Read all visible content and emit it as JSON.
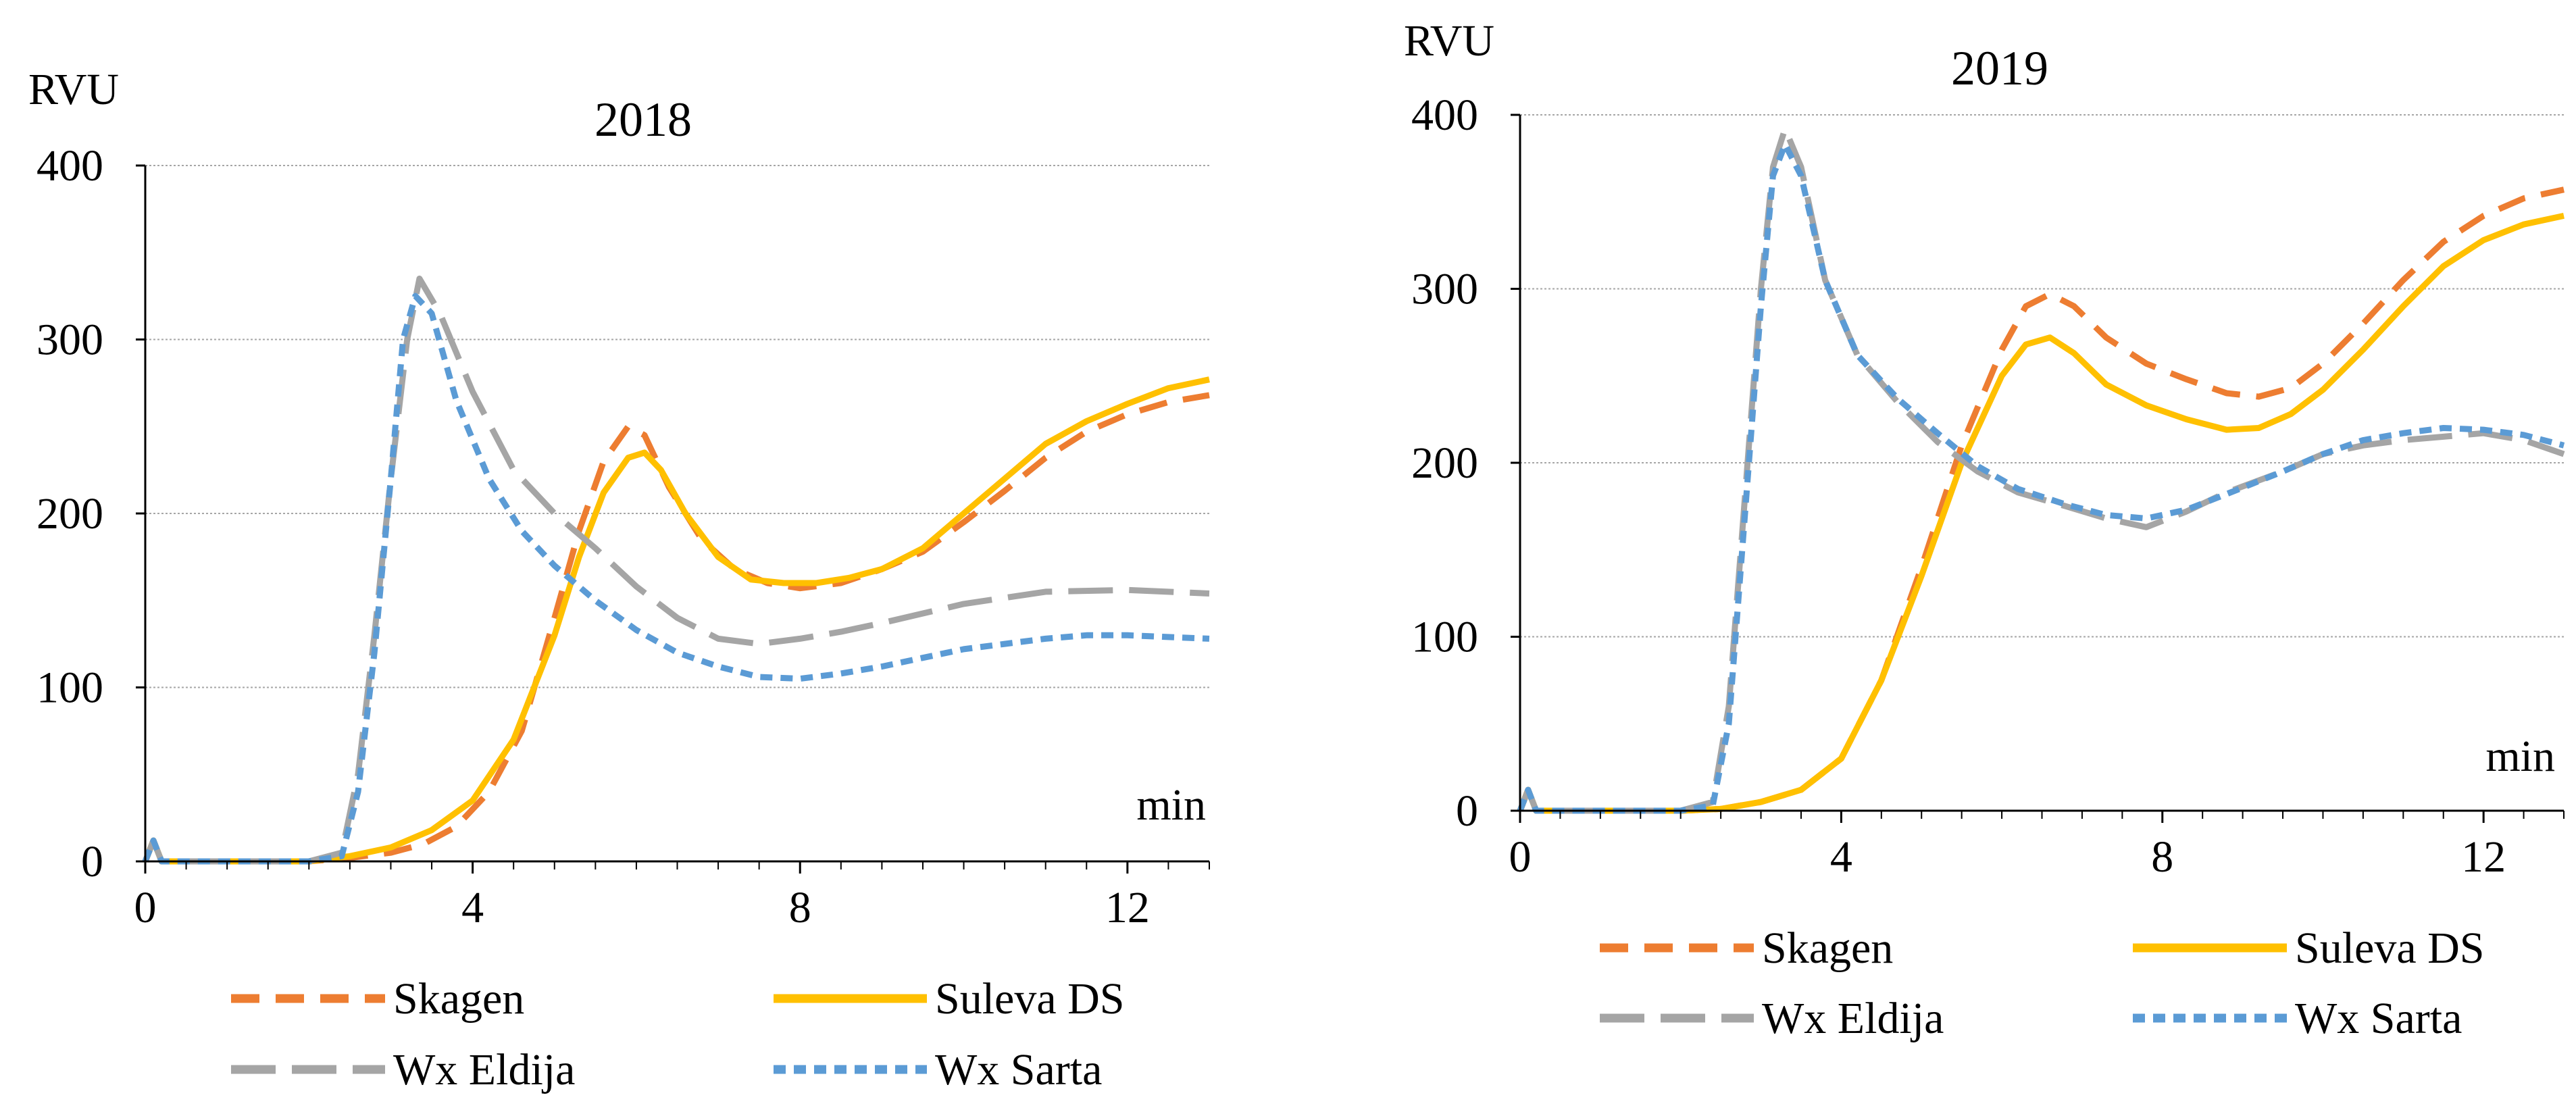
{
  "legend_order": [
    "Skagen",
    "Suleva DS",
    "Wx Eldija",
    "Wx Sarta"
  ],
  "chart_data": [
    {
      "type": "line",
      "title": "2018",
      "ylabel": "RVU",
      "xlabel": "min",
      "xlim": [
        0,
        13
      ],
      "ylim": [
        0,
        400
      ],
      "xticks": [
        0,
        4,
        8,
        12
      ],
      "yticks": [
        0,
        100,
        200,
        300,
        400
      ],
      "xtick_labels": [
        "0",
        "4",
        "8",
        "12"
      ],
      "ytick_labels": [
        "0",
        "100",
        "200",
        "300",
        "400"
      ],
      "grid": true,
      "legend_position": "bottom",
      "series": [
        {
          "name": "Skagen",
          "color": "#ed7d31",
          "style": "dash",
          "x": [
            0,
            0.1,
            0.2,
            1,
            2,
            2.5,
            3,
            3.4,
            3.8,
            4.2,
            4.6,
            5,
            5.3,
            5.6,
            5.9,
            6.1,
            6.4,
            6.8,
            7.2,
            7.6,
            8,
            8.5,
            9,
            9.5,
            10,
            10.5,
            11,
            11.5,
            12,
            12.5,
            13
          ],
          "y": [
            0,
            12,
            0,
            0,
            0,
            2,
            5,
            10,
            20,
            40,
            75,
            140,
            190,
            230,
            250,
            245,
            215,
            185,
            168,
            160,
            157,
            160,
            168,
            178,
            195,
            213,
            232,
            247,
            257,
            264,
            268
          ]
        },
        {
          "name": "Suleva DS",
          "color": "#ffc000",
          "style": "solid",
          "x": [
            0,
            0.1,
            0.2,
            1,
            2,
            2.5,
            3,
            3.5,
            4,
            4.5,
            5,
            5.3,
            5.6,
            5.9,
            6.1,
            6.3,
            6.6,
            7,
            7.4,
            7.8,
            8.2,
            8.6,
            9,
            9.5,
            10,
            10.5,
            11,
            11.5,
            12,
            12.5,
            13
          ],
          "y": [
            0,
            12,
            0,
            0,
            0,
            3,
            8,
            18,
            35,
            70,
            130,
            175,
            212,
            232,
            235,
            225,
            200,
            175,
            162,
            160,
            160,
            163,
            168,
            180,
            200,
            220,
            240,
            253,
            263,
            272,
            277
          ]
        },
        {
          "name": "Wx Eldija",
          "color": "#a5a5a5",
          "style": "longdash",
          "x": [
            0,
            0.1,
            0.2,
            1,
            2,
            2.4,
            2.6,
            2.8,
            3,
            3.2,
            3.35,
            3.6,
            4,
            4.5,
            5,
            5.5,
            6,
            6.5,
            7,
            7.5,
            8,
            8.5,
            9,
            10,
            11,
            12,
            13
          ],
          "y": [
            0,
            12,
            0,
            0,
            0,
            5,
            50,
            130,
            220,
            300,
            335,
            315,
            270,
            225,
            200,
            180,
            158,
            140,
            128,
            125,
            128,
            132,
            137,
            148,
            155,
            156,
            154
          ]
        },
        {
          "name": "Wx Sarta",
          "color": "#5b9bd5",
          "style": "shortdash",
          "x": [
            0,
            0.1,
            0.2,
            1,
            2,
            2.4,
            2.6,
            2.8,
            3,
            3.15,
            3.3,
            3.5,
            3.8,
            4.2,
            4.6,
            5,
            5.5,
            6,
            6.5,
            7,
            7.5,
            8,
            8.5,
            9,
            9.5,
            10,
            10.5,
            11,
            11.5,
            12,
            13
          ],
          "y": [
            0,
            12,
            0,
            0,
            0,
            3,
            40,
            120,
            220,
            300,
            325,
            315,
            265,
            220,
            190,
            170,
            150,
            133,
            120,
            112,
            106,
            105,
            108,
            112,
            117,
            122,
            125,
            128,
            130,
            130,
            128
          ]
        }
      ]
    },
    {
      "type": "line",
      "title": "2019",
      "ylabel": "RVU",
      "xlabel": "min",
      "xlim": [
        0,
        13
      ],
      "ylim": [
        0,
        400
      ],
      "xticks": [
        0,
        4,
        8,
        12
      ],
      "yticks": [
        0,
        100,
        200,
        300,
        400
      ],
      "xtick_labels": [
        "0",
        "4",
        "8",
        "12"
      ],
      "ytick_labels": [
        "0",
        "100",
        "200",
        "300",
        "400"
      ],
      "grid": true,
      "legend_position": "bottom",
      "series": [
        {
          "name": "Skagen",
          "color": "#ed7d31",
          "style": "dash",
          "x": [
            0,
            0.1,
            0.2,
            1,
            2,
            2.5,
            3,
            3.5,
            4,
            4.5,
            5,
            5.5,
            6,
            6.3,
            6.6,
            6.9,
            7.3,
            7.8,
            8.3,
            8.8,
            9.2,
            9.6,
            10,
            10.5,
            11,
            11.5,
            12,
            12.5,
            13
          ],
          "y": [
            0,
            12,
            0,
            0,
            0,
            1,
            5,
            12,
            30,
            75,
            140,
            210,
            265,
            290,
            297,
            290,
            272,
            257,
            248,
            240,
            238,
            243,
            257,
            280,
            305,
            327,
            342,
            352,
            357
          ]
        },
        {
          "name": "Suleva DS",
          "color": "#ffc000",
          "style": "solid",
          "x": [
            0,
            0.1,
            0.2,
            1,
            2,
            2.5,
            3,
            3.5,
            4,
            4.5,
            5,
            5.5,
            6,
            6.3,
            6.6,
            6.9,
            7.3,
            7.8,
            8.3,
            8.8,
            9.2,
            9.6,
            10,
            10.5,
            11,
            11.5,
            12,
            12.5,
            13
          ],
          "y": [
            0,
            12,
            0,
            0,
            0,
            1,
            5,
            12,
            30,
            75,
            135,
            200,
            250,
            268,
            272,
            263,
            245,
            233,
            225,
            219,
            220,
            228,
            242,
            265,
            290,
            313,
            328,
            337,
            342
          ]
        },
        {
          "name": "Wx Eldija",
          "color": "#a5a5a5",
          "style": "longdash",
          "x": [
            0,
            0.1,
            0.2,
            1,
            2,
            2.4,
            2.6,
            2.8,
            3,
            3.15,
            3.3,
            3.5,
            3.8,
            4.2,
            4.7,
            5.2,
            5.7,
            6.2,
            6.8,
            7.3,
            7.8,
            8.3,
            8.8,
            9.5,
            10,
            10.5,
            11,
            11.5,
            12,
            12.5,
            13
          ],
          "y": [
            0,
            12,
            0,
            0,
            0,
            5,
            60,
            180,
            300,
            370,
            392,
            370,
            305,
            262,
            235,
            212,
            195,
            183,
            175,
            168,
            163,
            172,
            183,
            195,
            205,
            210,
            213,
            215,
            217,
            213,
            205
          ]
        },
        {
          "name": "Wx Sarta",
          "color": "#5b9bd5",
          "style": "shortdash",
          "x": [
            0,
            0.1,
            0.2,
            1,
            2,
            2.4,
            2.6,
            2.8,
            3,
            3.15,
            3.3,
            3.5,
            3.8,
            4.2,
            4.7,
            5.2,
            5.7,
            6.2,
            6.8,
            7.3,
            7.8,
            8.3,
            8.8,
            9.5,
            10,
            10.5,
            11,
            11.5,
            12,
            12.5,
            13
          ],
          "y": [
            0,
            12,
            0,
            0,
            0,
            3,
            50,
            170,
            290,
            365,
            383,
            365,
            305,
            262,
            237,
            217,
            198,
            185,
            176,
            170,
            168,
            173,
            182,
            195,
            205,
            213,
            217,
            220,
            219,
            216,
            210
          ]
        }
      ]
    }
  ]
}
